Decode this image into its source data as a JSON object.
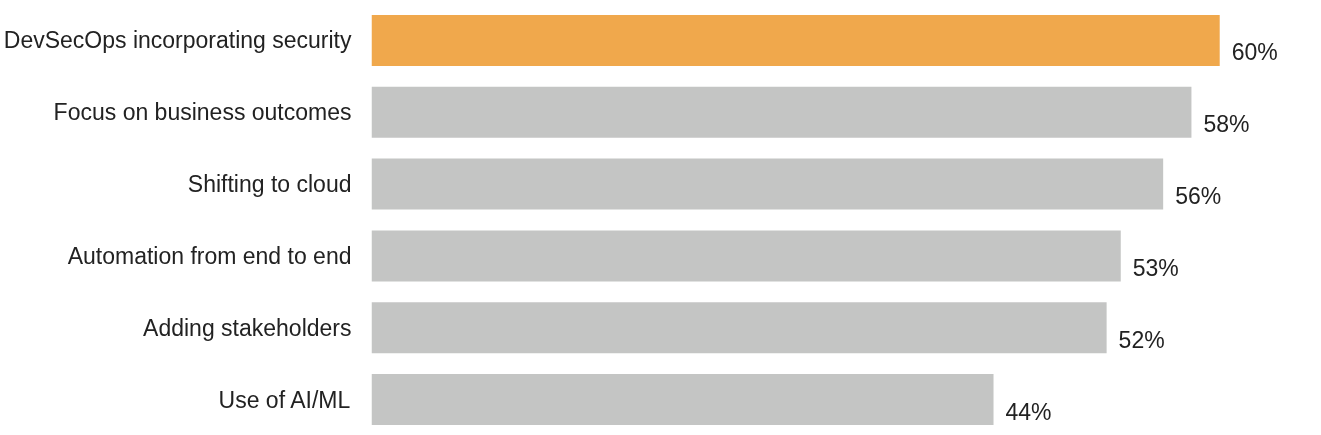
{
  "chart_data": {
    "type": "bar",
    "orientation": "horizontal",
    "categories": [
      "DevSecOps incorporating security",
      "Focus on business outcomes",
      "Shifting to cloud",
      "Automation from end to end",
      "Adding stakeholders",
      "Use of AI/ML"
    ],
    "values": [
      60,
      58,
      56,
      53,
      52,
      44
    ],
    "colors": [
      "#f0a84c",
      "#c4c5c4",
      "#c4c5c4",
      "#c4c5c4",
      "#c4c5c4",
      "#c4c5c4"
    ],
    "value_labels": [
      "60%",
      "58%",
      "56%",
      "53%",
      "52%",
      "44%"
    ],
    "grid": false
  }
}
